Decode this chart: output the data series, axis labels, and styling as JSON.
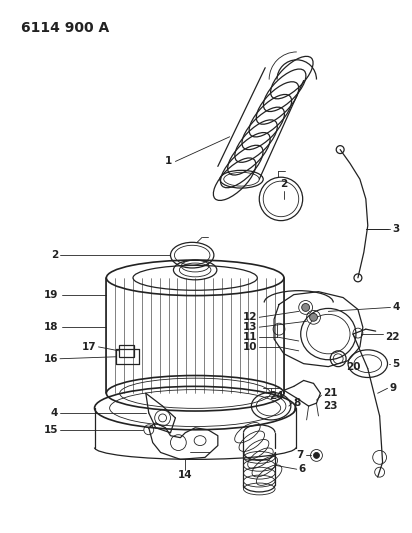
{
  "title": "6114 900 A",
  "bg_color": "#ffffff",
  "line_color": "#222222",
  "title_fontsize": 10,
  "label_fontsize": 7.5,
  "fig_width": 4.12,
  "fig_height": 5.33,
  "dpi": 100
}
